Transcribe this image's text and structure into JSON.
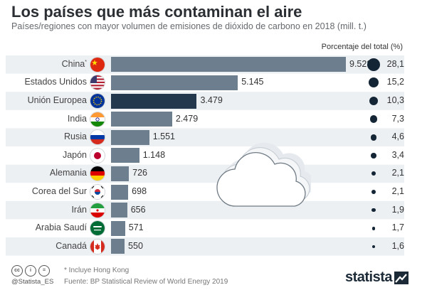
{
  "header": {
    "title": "Los países que más contaminan el aire",
    "subtitle": "Países/regiones con mayor volumen de emisiones de dióxido de carbono en 2018 (mill. t.)",
    "pct_column_title": "Porcentaje del total (%)"
  },
  "chart_data": {
    "type": "bar",
    "orientation": "horizontal",
    "categories": [
      "China",
      "Estados Unidos",
      "Unión Europea",
      "India",
      "Rusia",
      "Japón",
      "Alemania",
      "Corea del Sur",
      "Irán",
      "Arabia Saudí",
      "Canadá"
    ],
    "category_marks": [
      "*",
      "",
      "",
      "",
      "",
      "",
      "",
      "",
      "",
      "",
      ""
    ],
    "value_labels": [
      "9.528",
      "5.145",
      "3.479",
      "2.479",
      "1.551",
      "1.148",
      "726",
      "698",
      "656",
      "571",
      "550"
    ],
    "values": [
      9528,
      5145,
      3479,
      2479,
      1551,
      1148,
      726,
      698,
      656,
      571,
      550
    ],
    "percent_labels": [
      "28,1",
      "15,2",
      "10,3",
      "7,3",
      "4,6",
      "3,4",
      "2,1",
      "2,1",
      "1,9",
      "1,7",
      "1,6"
    ],
    "percent_values": [
      28.1,
      15.2,
      10.3,
      7.3,
      4.6,
      3.4,
      2.1,
      2.1,
      1.9,
      1.7,
      1.6
    ],
    "flags": [
      "china-flag",
      "usa-flag",
      "eu-flag",
      "india-flag",
      "russia-flag",
      "japan-flag",
      "germany-flag",
      "south-korea-flag",
      "iran-flag",
      "saudi-arabia-flag",
      "canada-flag"
    ],
    "xlim": [
      0,
      9528
    ],
    "highlighted_category": "Unión Europea",
    "colors": {
      "bar": "#6d7f8f",
      "bar_highlight": "#23384d",
      "dot": "#142535",
      "row_stripe": "#ecf0f3"
    },
    "grid": false,
    "legend": "none"
  },
  "footer": {
    "license_icons": [
      "cc",
      "i",
      "="
    ],
    "handle": "@Statista_ES",
    "footnote": "* Incluye Hong Kong",
    "source": "Fuente: BP Statistical Review of World Energy 2019",
    "logo_text": "statista"
  }
}
